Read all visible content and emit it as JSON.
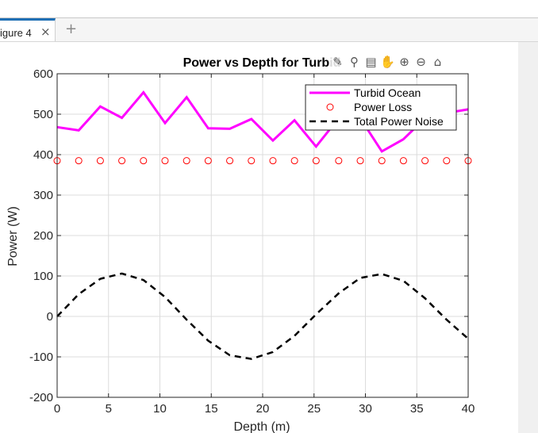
{
  "window": {
    "tab_label": "igure 4",
    "tab_close": "×",
    "tab_add": "+"
  },
  "toolbar": {
    "icons": [
      "brush-icon",
      "data-tip-icon",
      "legend-icon",
      "pan-icon",
      "zoom-in-icon",
      "zoom-out-icon",
      "home-icon"
    ],
    "glyphs": [
      "✎",
      "⚲",
      "▤",
      "✋",
      "⊕",
      "⊖",
      "⌂"
    ]
  },
  "chart_data": {
    "type": "line",
    "title": "Power vs Depth for Turbid",
    "xlabel": "Depth (m)",
    "ylabel": "Power (W)",
    "xlim": [
      0,
      40
    ],
    "ylim": [
      -200,
      600
    ],
    "xticks": [
      0,
      5,
      10,
      15,
      20,
      25,
      30,
      35,
      40
    ],
    "yticks": [
      -200,
      -100,
      0,
      100,
      200,
      300,
      400,
      500,
      600
    ],
    "grid": true,
    "legend_position": "top-right",
    "series": [
      {
        "name": "Turbid Ocean",
        "style": "solid-line",
        "color": "#ff00ff",
        "x": [
          0,
          2.1,
          4.2,
          6.3,
          8.4,
          10.5,
          12.6,
          14.7,
          16.8,
          18.9,
          21.0,
          23.1,
          25.2,
          27.4,
          29.5,
          31.6,
          33.7,
          35.8,
          37.9,
          40
        ],
        "y": [
          468,
          460,
          519,
          491,
          554,
          478,
          542,
          465,
          464,
          488,
          435,
          485,
          420,
          490,
          490,
          408,
          438,
          490,
          503,
          512
        ]
      },
      {
        "name": "Power Loss",
        "style": "circle-markers",
        "color": "#ff0000",
        "x": [
          0,
          2.1,
          4.2,
          6.3,
          8.4,
          10.5,
          12.6,
          14.7,
          16.8,
          18.9,
          21.0,
          23.1,
          25.2,
          27.4,
          29.5,
          31.6,
          33.7,
          35.8,
          37.9,
          40
        ],
        "y": [
          385,
          385,
          385,
          385,
          385,
          385,
          385,
          385,
          385,
          385,
          385,
          385,
          385,
          385,
          385,
          385,
          385,
          385,
          385,
          385
        ]
      },
      {
        "name": "Total Power Noise",
        "style": "dashed-line",
        "color": "#000000",
        "x": [
          0,
          2.1,
          4.2,
          6.3,
          8.4,
          10.5,
          12.6,
          14.7,
          16.8,
          18.9,
          21.0,
          23.1,
          25.2,
          27.4,
          29.5,
          31.6,
          33.7,
          35.8,
          37.9,
          40
        ],
        "y": [
          0,
          55,
          93,
          106,
          90,
          48,
          -8,
          -60,
          -96,
          -105,
          -88,
          -48,
          5,
          57,
          95,
          105,
          88,
          45,
          -8,
          -55
        ]
      }
    ]
  }
}
